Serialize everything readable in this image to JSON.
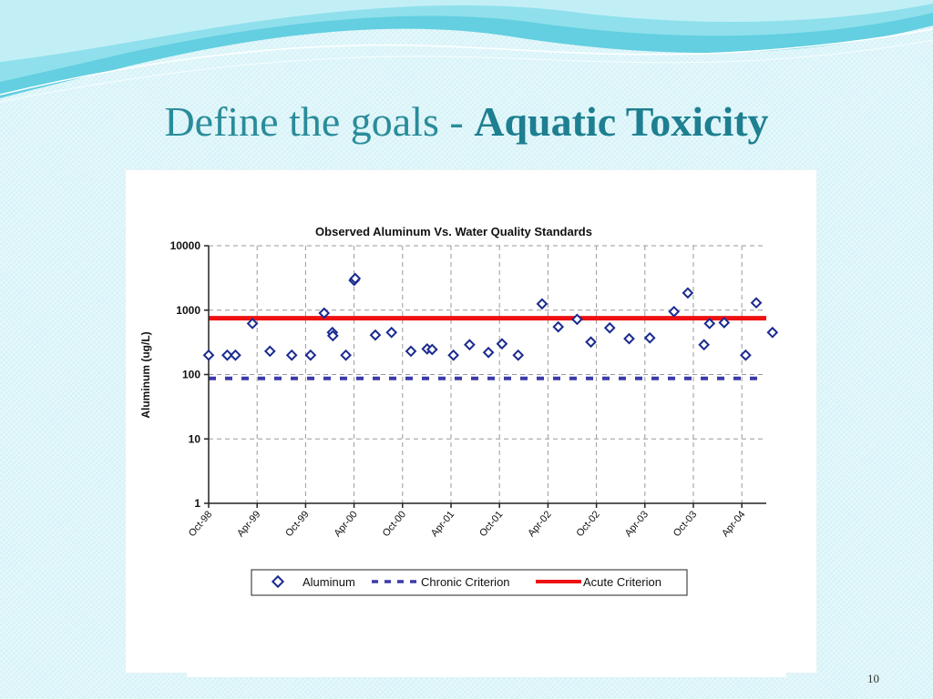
{
  "slide": {
    "title_main": "Define the goals -",
    "title_emphasis": "Aquatic Toxicity",
    "page_number": "10"
  },
  "colors": {
    "title": "#2a8c9a",
    "marker": "#1a2a8f",
    "chronic": "#3a3aa8",
    "acute": "#ee1111"
  },
  "chart_data": {
    "type": "scatter",
    "title": "Observed Aluminum Vs. Water Quality Standards",
    "ylabel": "Aluminum (ug/L)",
    "xlabel": "",
    "yscale": "log",
    "ylim": [
      1,
      10000
    ],
    "y_ticks": [
      "10000",
      "1000",
      "100",
      "10",
      "1"
    ],
    "x_ticks": [
      "Oct-98",
      "Apr-99",
      "Oct-99",
      "Apr-00",
      "Oct-00",
      "Apr-01",
      "Oct-01",
      "Apr-02",
      "Oct-02",
      "Apr-03",
      "Oct-03",
      "Apr-04"
    ],
    "grid": true,
    "legend_position": "bottom",
    "legend": [
      "Aluminum",
      "Chronic Criterion",
      "Acute Criterion"
    ],
    "series": [
      {
        "name": "Aluminum",
        "style": "diamond-markers",
        "points": [
          {
            "x": "1998-10-01",
            "y": 200
          },
          {
            "x": "1998-12-10",
            "y": 200
          },
          {
            "x": "1999-01-10",
            "y": 200
          },
          {
            "x": "1999-03-15",
            "y": 620
          },
          {
            "x": "1999-05-20",
            "y": 230
          },
          {
            "x": "1999-08-10",
            "y": 200
          },
          {
            "x": "1999-10-20",
            "y": 200
          },
          {
            "x": "1999-12-10",
            "y": 900
          },
          {
            "x": "2000-01-10",
            "y": 450
          },
          {
            "x": "2000-01-12",
            "y": 400
          },
          {
            "x": "2000-03-01",
            "y": 200
          },
          {
            "x": "2000-04-01",
            "y": 2900
          },
          {
            "x": "2000-04-05",
            "y": 3100
          },
          {
            "x": "2000-06-20",
            "y": 410
          },
          {
            "x": "2000-08-20",
            "y": 450
          },
          {
            "x": "2000-11-01",
            "y": 230
          },
          {
            "x": "2001-01-01",
            "y": 250
          },
          {
            "x": "2001-01-20",
            "y": 245
          },
          {
            "x": "2001-04-10",
            "y": 200
          },
          {
            "x": "2001-06-10",
            "y": 290
          },
          {
            "x": "2001-08-20",
            "y": 220
          },
          {
            "x": "2001-10-10",
            "y": 300
          },
          {
            "x": "2001-12-10",
            "y": 200
          },
          {
            "x": "2002-03-10",
            "y": 1250
          },
          {
            "x": "2002-05-10",
            "y": 550
          },
          {
            "x": "2002-07-20",
            "y": 720
          },
          {
            "x": "2002-09-10",
            "y": 320
          },
          {
            "x": "2002-11-20",
            "y": 530
          },
          {
            "x": "2003-02-01",
            "y": 360
          },
          {
            "x": "2003-04-20",
            "y": 370
          },
          {
            "x": "2003-07-20",
            "y": 950
          },
          {
            "x": "2003-09-10",
            "y": 1850
          },
          {
            "x": "2003-11-10",
            "y": 290
          },
          {
            "x": "2003-12-01",
            "y": 620
          },
          {
            "x": "2004-01-25",
            "y": 640
          },
          {
            "x": "2004-04-15",
            "y": 200
          },
          {
            "x": "2004-05-25",
            "y": 1300
          },
          {
            "x": "2004-07-25",
            "y": 450
          }
        ]
      },
      {
        "name": "Chronic Criterion",
        "style": "dashed-line",
        "y": 87
      },
      {
        "name": "Acute Criterion",
        "style": "solid-line",
        "y": 750
      }
    ]
  }
}
